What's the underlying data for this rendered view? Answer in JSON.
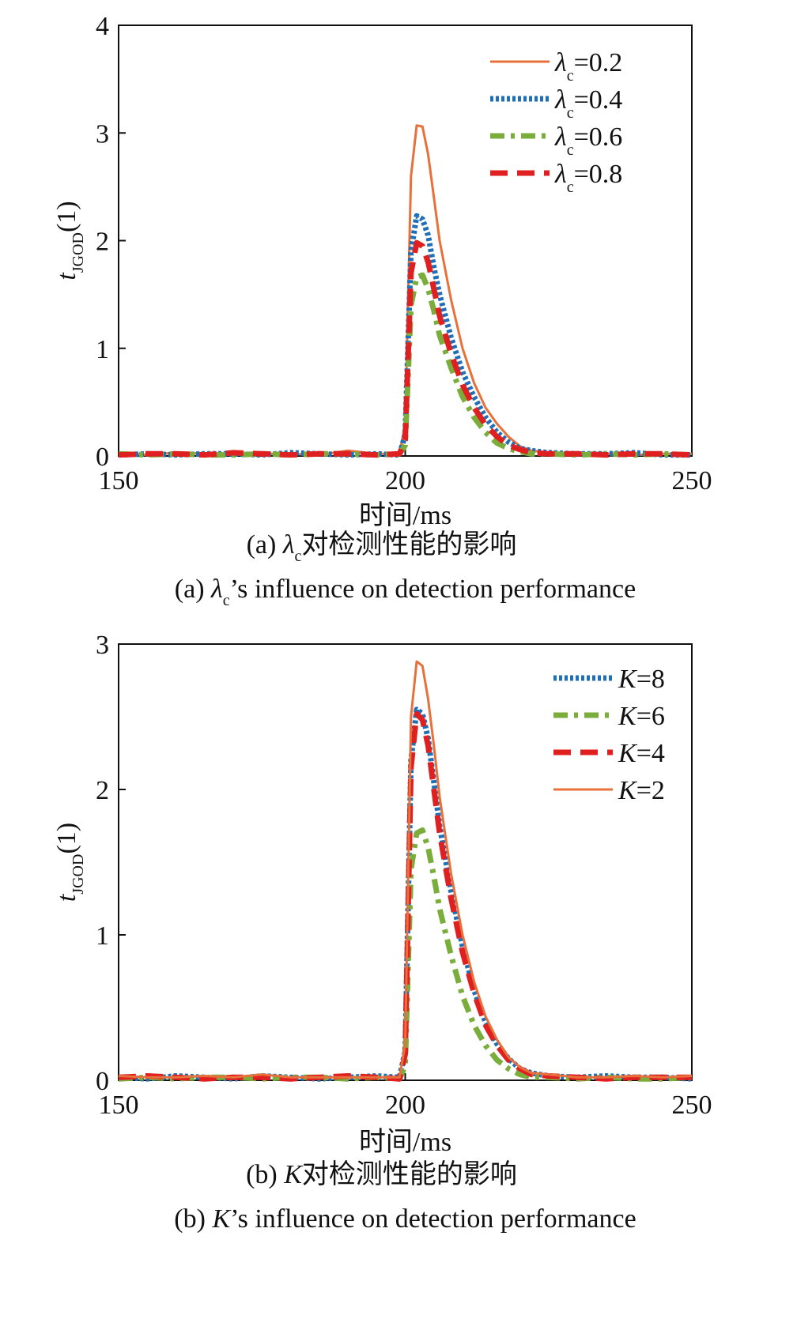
{
  "chart_data": [
    {
      "type": "line",
      "panel": "(a)",
      "xlabel": "时间/ms",
      "ylabel_main": "t",
      "ylabel_sub": "JGOD",
      "ylabel_tail": "(1)",
      "xlim": [
        150,
        250
      ],
      "ylim": [
        0,
        4
      ],
      "xticks": [
        "150",
        "200",
        "250"
      ],
      "yticks": [
        "0",
        "1",
        "2",
        "3",
        "4"
      ],
      "caption_cn_prefix": "(a) ",
      "caption_cn_symbol": "λ",
      "caption_cn_sub": "c",
      "caption_cn_rest": "对检测性能的影响",
      "caption_en_prefix": "(a) ",
      "caption_en_symbol": "λ",
      "caption_en_sub": "c",
      "caption_en_rest": "’s influence on detection performance",
      "legend_position": "top-right",
      "x": [
        150,
        155,
        160,
        165,
        170,
        175,
        180,
        185,
        190,
        195,
        199,
        200,
        201,
        202,
        203,
        204,
        205,
        206,
        208,
        210,
        212,
        214,
        216,
        218,
        220,
        222,
        225,
        230,
        235,
        240,
        245,
        250
      ],
      "series": [
        {
          "name_sym": "λ",
          "name_sub": "c",
          "name_val": "=0.2",
          "color": "#e8703a",
          "style": "solid",
          "values": [
            0.03,
            0.01,
            0.03,
            0.02,
            0.01,
            0.02,
            0.02,
            0.01,
            0.05,
            0.02,
            0.02,
            0.3,
            2.6,
            3.07,
            3.06,
            2.8,
            2.4,
            2.0,
            1.45,
            1.0,
            0.68,
            0.45,
            0.3,
            0.18,
            0.09,
            0.05,
            0.03,
            0.02,
            0.02,
            0.01,
            0.02,
            0.02
          ]
        },
        {
          "name_sym": "λ",
          "name_sub": "c",
          "name_val": "=0.4",
          "color": "#1f6fb8",
          "style": "dotted",
          "values": [
            0.01,
            0.02,
            0.01,
            0.02,
            0.02,
            0.01,
            0.03,
            0.02,
            0.01,
            0.02,
            0.01,
            0.2,
            1.9,
            2.23,
            2.2,
            2.05,
            1.75,
            1.5,
            1.1,
            0.78,
            0.55,
            0.36,
            0.22,
            0.13,
            0.07,
            0.05,
            0.03,
            0.02,
            0.02,
            0.03,
            0.01,
            0.01
          ]
        },
        {
          "name_sym": "λ",
          "name_sub": "c",
          "name_val": "=0.6",
          "color": "#7aad3b",
          "style": "dashdot",
          "values": [
            0.02,
            0.01,
            0.02,
            0.01,
            0.01,
            0.02,
            0.01,
            0.02,
            0.02,
            0.01,
            0.02,
            0.1,
            1.4,
            1.66,
            1.68,
            1.55,
            1.35,
            1.12,
            0.82,
            0.55,
            0.36,
            0.22,
            0.12,
            0.07,
            0.04,
            0.02,
            0.02,
            0.01,
            0.02,
            0.01,
            0.02,
            0.01
          ]
        },
        {
          "name_sym": "λ",
          "name_sub": "c",
          "name_val": "=0.8",
          "color": "#e02020",
          "style": "dashed",
          "values": [
            0.01,
            0.02,
            0.02,
            0.01,
            0.03,
            0.02,
            0.01,
            0.02,
            0.02,
            0.01,
            0.02,
            0.15,
            1.7,
            1.98,
            1.95,
            1.8,
            1.55,
            1.3,
            0.95,
            0.66,
            0.45,
            0.29,
            0.18,
            0.1,
            0.06,
            0.03,
            0.02,
            0.02,
            0.01,
            0.02,
            0.02,
            0.01
          ]
        }
      ]
    },
    {
      "type": "line",
      "panel": "(b)",
      "xlabel": "时间/ms",
      "ylabel_main": "t",
      "ylabel_sub": "JGOD",
      "ylabel_tail": "(1)",
      "xlim": [
        150,
        250
      ],
      "ylim": [
        0,
        3
      ],
      "xticks": [
        "150",
        "200",
        "250"
      ],
      "yticks": [
        "0",
        "1",
        "2",
        "3"
      ],
      "caption_cn_prefix": "(b) ",
      "caption_cn_symbol": "K",
      "caption_cn_sub": "",
      "caption_cn_rest": "对检测性能的影响",
      "caption_en_prefix": "(b) ",
      "caption_en_symbol": "K",
      "caption_en_sub": "",
      "caption_en_rest": "’s influence on detection performance",
      "legend_position": "top-right",
      "x": [
        150,
        155,
        160,
        165,
        170,
        175,
        180,
        185,
        190,
        195,
        199,
        200,
        201,
        202,
        203,
        204,
        205,
        206,
        208,
        210,
        212,
        214,
        216,
        218,
        220,
        222,
        225,
        230,
        235,
        240,
        245,
        250
      ],
      "series": [
        {
          "name_sym": "K",
          "name_sub": "",
          "name_val": "=8",
          "color": "#1f6fb8",
          "style": "dotted",
          "values": [
            0.02,
            0.01,
            0.03,
            0.02,
            0.01,
            0.03,
            0.02,
            0.01,
            0.02,
            0.03,
            0.02,
            0.2,
            2.2,
            2.55,
            2.52,
            2.35,
            2.05,
            1.75,
            1.3,
            0.92,
            0.62,
            0.4,
            0.25,
            0.15,
            0.08,
            0.05,
            0.03,
            0.02,
            0.03,
            0.02,
            0.02,
            0.01
          ]
        },
        {
          "name_sym": "K",
          "name_sub": "",
          "name_val": "=6",
          "color": "#7aad3b",
          "style": "dashdot",
          "values": [
            0.01,
            0.02,
            0.01,
            0.02,
            0.02,
            0.01,
            0.02,
            0.02,
            0.01,
            0.02,
            0.01,
            0.1,
            1.45,
            1.7,
            1.72,
            1.6,
            1.4,
            1.18,
            0.86,
            0.58,
            0.38,
            0.24,
            0.14,
            0.08,
            0.04,
            0.02,
            0.02,
            0.01,
            0.02,
            0.01,
            0.01,
            0.02
          ]
        },
        {
          "name_sym": "K",
          "name_sub": "",
          "name_val": "=4",
          "color": "#e02020",
          "style": "dashed",
          "values": [
            0.02,
            0.03,
            0.02,
            0.01,
            0.02,
            0.02,
            0.01,
            0.02,
            0.03,
            0.02,
            0.01,
            0.18,
            2.15,
            2.52,
            2.48,
            2.3,
            2.0,
            1.7,
            1.25,
            0.88,
            0.6,
            0.38,
            0.24,
            0.14,
            0.08,
            0.04,
            0.03,
            0.02,
            0.01,
            0.02,
            0.02,
            0.02
          ]
        },
        {
          "name_sym": "K",
          "name_sub": "",
          "name_val": "=2",
          "color": "#e8703a",
          "style": "solid",
          "values": [
            0.03,
            0.02,
            0.02,
            0.03,
            0.02,
            0.04,
            0.02,
            0.02,
            0.02,
            0.02,
            0.02,
            0.25,
            2.5,
            2.88,
            2.85,
            2.62,
            2.3,
            1.95,
            1.42,
            1.0,
            0.68,
            0.44,
            0.28,
            0.16,
            0.09,
            0.05,
            0.04,
            0.02,
            0.02,
            0.03,
            0.02,
            0.03
          ]
        }
      ]
    }
  ]
}
